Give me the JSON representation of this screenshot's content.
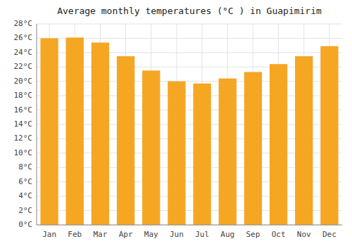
{
  "chart_data": {
    "type": "bar",
    "title": "Average monthly temperatures (°C ) in Guapimirim",
    "categories": [
      "Jan",
      "Feb",
      "Mar",
      "Apr",
      "May",
      "Jun",
      "Jul",
      "Aug",
      "Sep",
      "Oct",
      "Nov",
      "Dec"
    ],
    "values": [
      26.0,
      26.1,
      25.4,
      23.5,
      21.5,
      20.0,
      19.7,
      20.4,
      21.3,
      22.4,
      23.5,
      24.9
    ],
    "color": "#F5A623",
    "ylim": [
      0,
      28
    ],
    "yticks": [
      {
        "value": 0,
        "label": "0°C"
      },
      {
        "value": 2,
        "label": "2°C"
      },
      {
        "value": 4,
        "label": "4°C"
      },
      {
        "value": 6,
        "label": "6°C"
      },
      {
        "value": 8,
        "label": "8°C"
      },
      {
        "value": 10,
        "label": "10°C"
      },
      {
        "value": 12,
        "label": "12°C"
      },
      {
        "value": 14,
        "label": "14°C"
      },
      {
        "value": 16,
        "label": "16°C"
      },
      {
        "value": 18,
        "label": "18°C"
      },
      {
        "value": 20,
        "label": "20°C"
      },
      {
        "value": 22,
        "label": "22°C"
      },
      {
        "value": 24,
        "label": "24°C"
      },
      {
        "value": 26,
        "label": "26°C"
      },
      {
        "value": 28,
        "label": "28°C"
      }
    ],
    "grid": true
  }
}
